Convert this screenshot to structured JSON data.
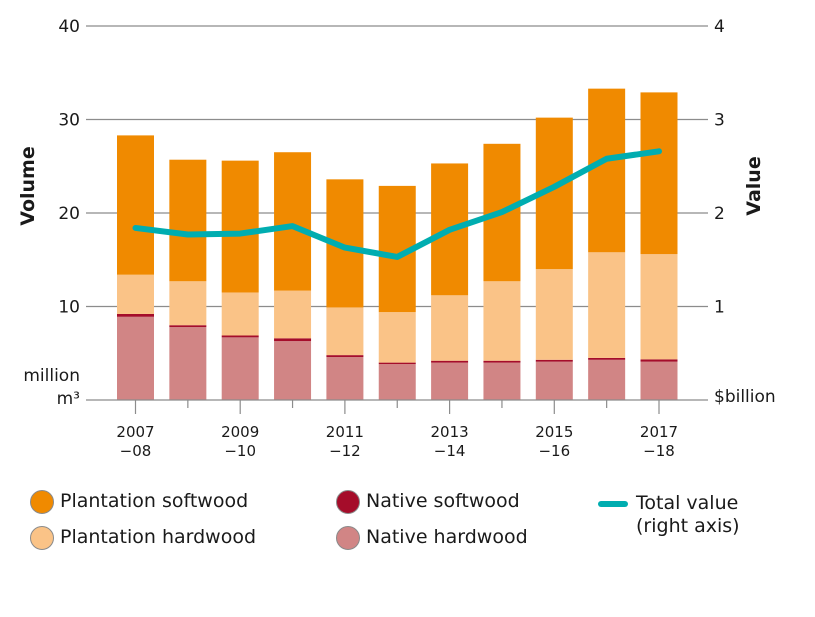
{
  "chart_data": {
    "type": "bar",
    "stacked": true,
    "title": "",
    "categories": [
      "2007-08",
      "2008-09",
      "2009-10",
      "2010-11",
      "2011-12",
      "2012-13",
      "2013-14",
      "2014-15",
      "2015-16",
      "2016-17",
      "2017-18"
    ],
    "x_tick_labels": [
      {
        "index": 0,
        "line1": "2007",
        "line2": "−08"
      },
      {
        "index": 2,
        "line1": "2009",
        "line2": "−10"
      },
      {
        "index": 4,
        "line1": "2011",
        "line2": "−12"
      },
      {
        "index": 6,
        "line1": "2013",
        "line2": "−14"
      },
      {
        "index": 8,
        "line1": "2015",
        "line2": "−16"
      },
      {
        "index": 10,
        "line1": "2017",
        "line2": "−18"
      }
    ],
    "left_axis": {
      "label": "Volume",
      "unit_line1": "million",
      "unit_line2": "m³",
      "ylim": [
        0,
        40
      ],
      "ticks": [
        10,
        20,
        30,
        40
      ]
    },
    "right_axis": {
      "label": "Value",
      "unit": "$billion",
      "ylim": [
        0,
        4
      ],
      "ticks": [
        1,
        2,
        3,
        4
      ]
    },
    "grid": true,
    "series": [
      {
        "name": "Native hardwood",
        "axis": "left",
        "kind": "bar",
        "color": "#D18585",
        "values": [
          8.9,
          7.8,
          6.7,
          6.3,
          4.6,
          3.85,
          4.0,
          4.0,
          4.1,
          4.3,
          4.1
        ]
      },
      {
        "name": "Native softwood",
        "axis": "left",
        "kind": "bar",
        "color": "#A50D2A",
        "values": [
          0.3,
          0.2,
          0.2,
          0.3,
          0.2,
          0.15,
          0.2,
          0.2,
          0.2,
          0.2,
          0.25
        ]
      },
      {
        "name": "Plantation hardwood",
        "axis": "left",
        "kind": "bar",
        "color": "#FAC387",
        "values": [
          4.2,
          4.7,
          4.6,
          5.1,
          5.1,
          5.4,
          7.0,
          8.5,
          9.7,
          11.3,
          11.25
        ]
      },
      {
        "name": "Plantation softwood",
        "axis": "left",
        "kind": "bar",
        "color": "#F08A00",
        "values": [
          14.9,
          13.0,
          14.1,
          14.8,
          13.7,
          13.5,
          14.1,
          14.7,
          16.2,
          17.5,
          17.3
        ]
      },
      {
        "name": "Total value",
        "axis": "right",
        "kind": "line",
        "color": "#00ADB0",
        "values": [
          1.84,
          1.77,
          1.78,
          1.86,
          1.63,
          1.53,
          1.82,
          2.01,
          2.28,
          2.58,
          2.66
        ]
      }
    ],
    "legend_placement": "bottom"
  },
  "legend": {
    "items": [
      {
        "label": "Plantation softwood",
        "color": "#F08A00",
        "shape": "circle"
      },
      {
        "label": "Plantation hardwood",
        "color": "#FAC387",
        "shape": "circle"
      },
      {
        "label": "Native softwood",
        "color": "#A50D2A",
        "shape": "circle"
      },
      {
        "label": "Native hardwood",
        "color": "#D18585",
        "shape": "circle"
      },
      {
        "label": "Total value\n(right axis)",
        "color": "#00ADB0",
        "shape": "line"
      }
    ]
  }
}
